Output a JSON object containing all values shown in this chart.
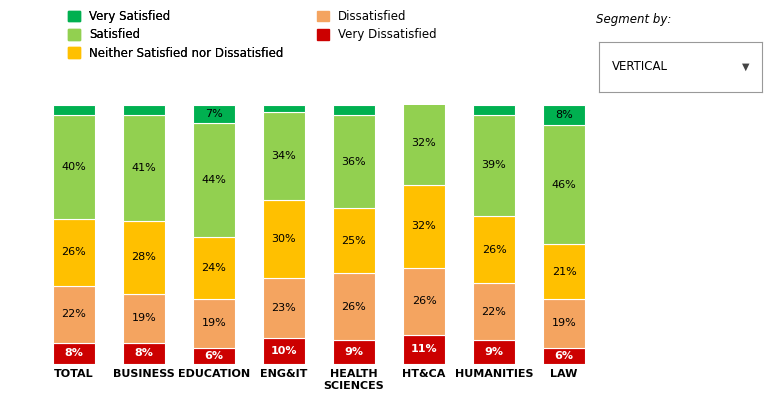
{
  "categories": [
    "TOTAL",
    "BUSINESS",
    "EDUCATION",
    "ENG&IT",
    "HEALTH\nSCIENCES",
    "HT&CA",
    "HUMANITIES",
    "LAW"
  ],
  "series": {
    "Very Dissatisfied": [
      8,
      8,
      6,
      10,
      9,
      11,
      9,
      6
    ],
    "Dissatisfied": [
      22,
      19,
      19,
      23,
      26,
      26,
      22,
      19
    ],
    "Neither Satisfied nor Dissatisfied": [
      26,
      28,
      24,
      30,
      25,
      32,
      26,
      21
    ],
    "Satisfied": [
      40,
      41,
      44,
      34,
      36,
      32,
      39,
      46
    ],
    "Very Satisfied": [
      4,
      4,
      7,
      3,
      4,
      0,
      4,
      8
    ]
  },
  "colors": {
    "Very Dissatisfied": "#cc0000",
    "Dissatisfied": "#f4a460",
    "Neither Satisfied nor Dissatisfied": "#ffc000",
    "Satisfied": "#92d050",
    "Very Satisfied": "#00b050"
  },
  "legend_items_left": [
    "Very Satisfied",
    "Satisfied",
    "Neither Satisfied nor Dissatisfied"
  ],
  "legend_items_right": [
    "Dissatisfied",
    "Very Dissatisfied"
  ],
  "bar_width": 0.6,
  "figsize": [
    7.78,
    4.18
  ],
  "dpi": 100,
  "segment_label": "Segment by:",
  "segment_value": "VERTICAL",
  "background_color": "#ffffff",
  "bar_edge_color": "white",
  "label_min_pct": 5
}
